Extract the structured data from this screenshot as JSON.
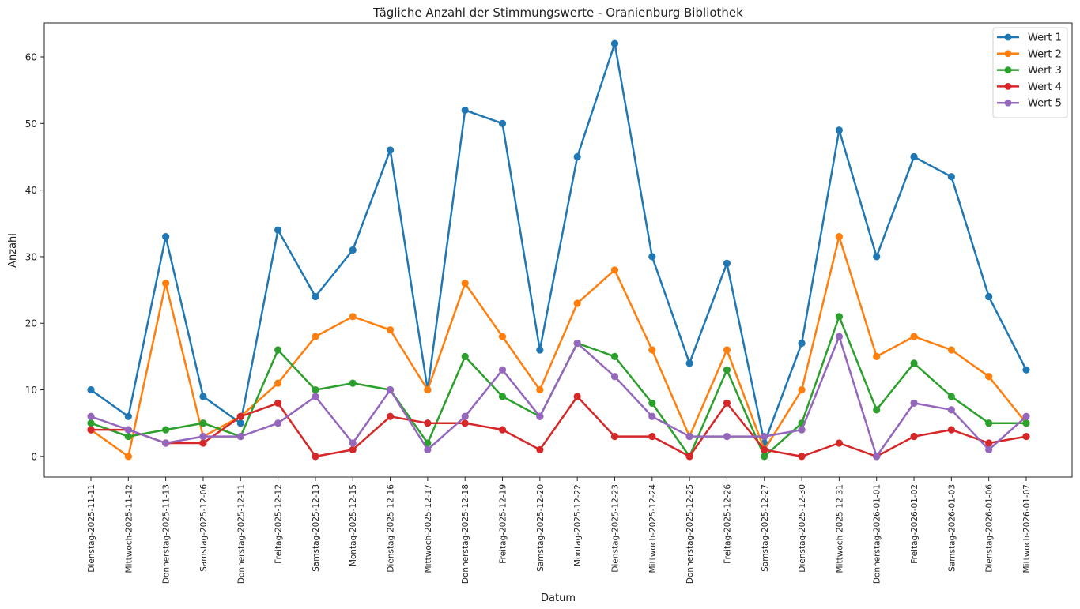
{
  "chart_data": {
    "type": "line",
    "title": "Tägliche Anzahl der Stimmungswerte - Oranienburg Bibliothek",
    "xlabel": "Datum",
    "ylabel": "Anzahl",
    "ylim": [
      -3.1,
      65.1
    ],
    "yticks": [
      0,
      10,
      20,
      30,
      40,
      50,
      60
    ],
    "grid": false,
    "legend_position": "top-right",
    "categories": [
      "Dienstag-2025-11-11",
      "Mittwoch-2025-11-12",
      "Donnerstag-2025-11-13",
      "Samstag-2025-12-06",
      "Donnerstag-2025-12-11",
      "Freitag-2025-12-12",
      "Samstag-2025-12-13",
      "Montag-2025-12-15",
      "Dienstag-2025-12-16",
      "Mittwoch-2025-12-17",
      "Donnerstag-2025-12-18",
      "Freitag-2025-12-19",
      "Samstag-2025-12-20",
      "Montag-2025-12-22",
      "Dienstag-2025-12-23",
      "Mittwoch-2025-12-24",
      "Donnerstag-2025-12-25",
      "Freitag-2025-12-26",
      "Samstag-2025-12-27",
      "Dienstag-2025-12-30",
      "Mittwoch-2025-12-31",
      "Donnerstag-2026-01-01",
      "Freitag-2026-01-02",
      "Samstag-2026-01-03",
      "Dienstag-2026-01-06",
      "Mittwoch-2026-01-07"
    ],
    "series": [
      {
        "name": "Wert 1",
        "color": "#1f77b4",
        "values": [
          10,
          6,
          33,
          9,
          5,
          34,
          24,
          31,
          46,
          10,
          52,
          50,
          16,
          45,
          62,
          30,
          14,
          29,
          2,
          17,
          49,
          30,
          45,
          42,
          24,
          13
        ]
      },
      {
        "name": "Wert 2",
        "color": "#ff7f0e",
        "values": [
          4,
          0,
          26,
          3,
          6,
          11,
          18,
          21,
          19,
          10,
          26,
          18,
          10,
          23,
          28,
          16,
          3,
          16,
          1,
          10,
          33,
          15,
          18,
          16,
          12,
          5
        ]
      },
      {
        "name": "Wert 3",
        "color": "#2ca02c",
        "values": [
          5,
          3,
          4,
          5,
          3,
          16,
          10,
          11,
          10,
          2,
          15,
          9,
          6,
          17,
          15,
          8,
          0,
          13,
          0,
          5,
          21,
          7,
          14,
          9,
          5,
          5
        ]
      },
      {
        "name": "Wert 4",
        "color": "#d62728",
        "values": [
          4,
          4,
          2,
          2,
          6,
          8,
          0,
          1,
          6,
          5,
          5,
          4,
          1,
          9,
          3,
          3,
          0,
          8,
          1,
          0,
          2,
          0,
          3,
          4,
          2,
          3
        ]
      },
      {
        "name": "Wert 5",
        "color": "#9467bd",
        "values": [
          6,
          4,
          2,
          3,
          3,
          5,
          9,
          2,
          10,
          1,
          6,
          13,
          6,
          17,
          12,
          6,
          3,
          3,
          3,
          4,
          18,
          0,
          8,
          7,
          1,
          6
        ]
      }
    ]
  }
}
